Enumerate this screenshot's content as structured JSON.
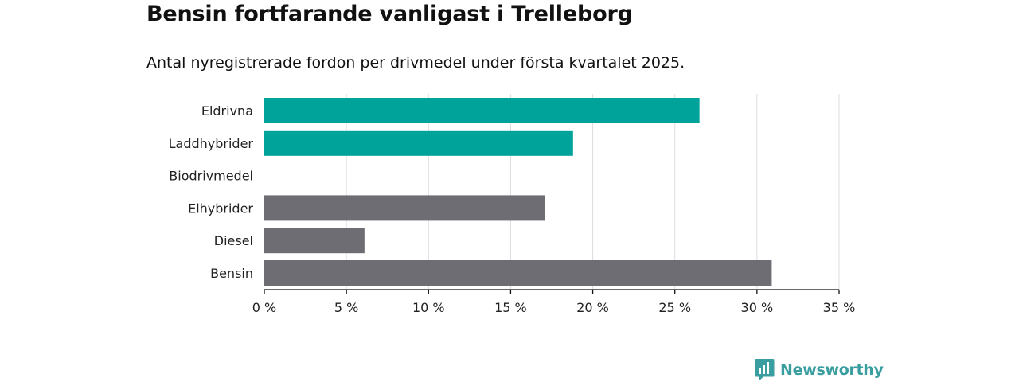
{
  "header": {
    "title": "Bensin fortfarande vanligast i Trelleborg",
    "subtitle": "Antal nyregistrerade fordon per drivmedel under första kvartalet 2025."
  },
  "chart_data": {
    "type": "bar",
    "orientation": "horizontal",
    "categories": [
      "Eldrivna",
      "Laddhybrider",
      "Biodrivmedel",
      "Elhybrider",
      "Diesel",
      "Bensin"
    ],
    "values": [
      26.5,
      18.8,
      0,
      17.1,
      6.1,
      30.9
    ],
    "colors": [
      "#00a39a",
      "#00a39a",
      "#00a39a",
      "#6e6d73",
      "#6e6d73",
      "#6e6d73"
    ],
    "xlim": [
      0,
      35
    ],
    "xticks": [
      0,
      5,
      10,
      15,
      20,
      25,
      30,
      35
    ],
    "tick_labels": [
      "0 %",
      "5 %",
      "10 %",
      "15 %",
      "20 %",
      "25 %",
      "30 %",
      "35 %"
    ],
    "grid": true,
    "xlabel": "",
    "ylabel": ""
  },
  "branding": {
    "logo_text": "Newsworthy",
    "logo_color": "#3a9ea0"
  }
}
